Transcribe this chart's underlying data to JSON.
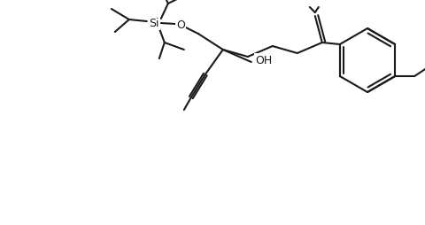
{
  "background": "#ffffff",
  "line_color": "#1a1a1a",
  "lw": 1.5,
  "figsize": [
    4.8,
    2.54
  ],
  "dpi": 100,
  "Si_label": "Si",
  "O_label": "O",
  "OH_label": "OH"
}
